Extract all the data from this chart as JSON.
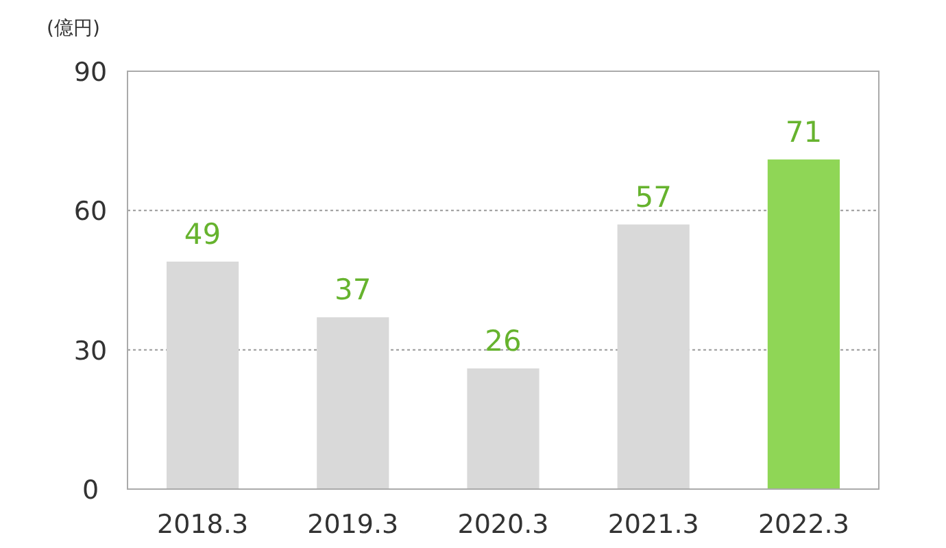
{
  "chart_data": {
    "type": "bar",
    "ylabel": "(億円)",
    "categories": [
      "2018.3",
      "2019.3",
      "2020.3",
      "2021.3",
      "2022.3"
    ],
    "values": [
      49,
      37,
      26,
      57,
      71
    ],
    "colors": [
      "#d9d9d9",
      "#d9d9d9",
      "#d9d9d9",
      "#d9d9d9",
      "#8fd656"
    ],
    "ylim": [
      0,
      90
    ],
    "yticks": [
      0,
      30,
      60,
      90
    ],
    "grid": "y",
    "data_labels": true
  }
}
